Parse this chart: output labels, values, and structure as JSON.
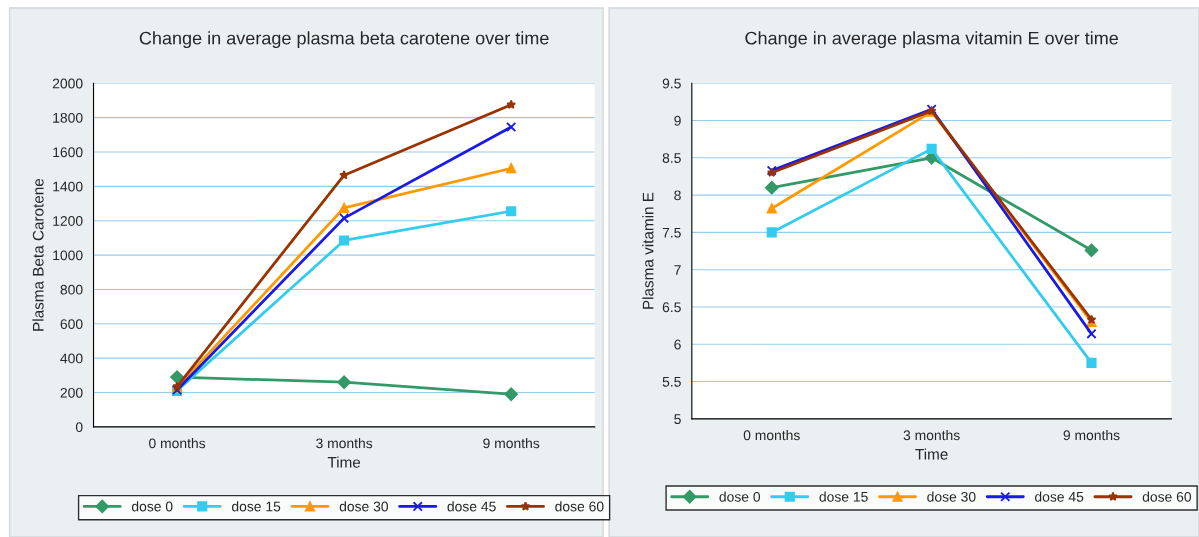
{
  "chart_data": [
    {
      "type": "line",
      "title": "Change in average plasma beta carotene over time",
      "xlabel": "Time",
      "ylabel": "Plasma Beta Carotene",
      "categories": [
        "0 months",
        "3 months",
        "9 months"
      ],
      "ylim": [
        0,
        2000
      ],
      "yticks": [
        0,
        200,
        400,
        600,
        800,
        1000,
        1200,
        1400,
        1600,
        1800,
        2000
      ],
      "grid": "y",
      "legend": "bottom",
      "series": [
        {
          "name": "dose 0",
          "color": "#339966",
          "marker": "diamond",
          "values": [
            290,
            260,
            190
          ]
        },
        {
          "name": "dose 15",
          "color": "#33ccee",
          "marker": "square",
          "values": [
            210,
            1085,
            1255
          ]
        },
        {
          "name": "dose 30",
          "color": "#ff9900",
          "marker": "triangle",
          "values": [
            230,
            1275,
            1505
          ]
        },
        {
          "name": "dose 45",
          "color": "#1a1ae6",
          "marker": "cross",
          "values": [
            215,
            1215,
            1745
          ]
        },
        {
          "name": "dose 60",
          "color": "#993300",
          "marker": "star",
          "values": [
            235,
            1465,
            1875
          ]
        }
      ]
    },
    {
      "type": "line",
      "title": "Change in average plasma vitamin E over time",
      "xlabel": "Time",
      "ylabel": "Plasma vitamin E",
      "categories": [
        "0 months",
        "3 months",
        "9 months"
      ],
      "ylim": [
        5,
        9.5
      ],
      "yticks": [
        5,
        5.5,
        6,
        6.5,
        7,
        7.5,
        8,
        8.5,
        9,
        9.5
      ],
      "grid": "y",
      "legend": "bottom",
      "series": [
        {
          "name": "dose 0",
          "color": "#339966",
          "marker": "diamond",
          "values": [
            8.1,
            8.5,
            7.26
          ]
        },
        {
          "name": "dose 15",
          "color": "#33ccee",
          "marker": "square",
          "values": [
            7.5,
            8.62,
            5.75
          ]
        },
        {
          "name": "dose 30",
          "color": "#ff9900",
          "marker": "triangle",
          "values": [
            7.82,
            9.12,
            6.3
          ]
        },
        {
          "name": "dose 45",
          "color": "#1a1ae6",
          "marker": "cross",
          "values": [
            8.33,
            9.15,
            6.14
          ]
        },
        {
          "name": "dose 60",
          "color": "#993300",
          "marker": "star",
          "values": [
            8.3,
            9.13,
            6.33
          ]
        }
      ]
    }
  ]
}
